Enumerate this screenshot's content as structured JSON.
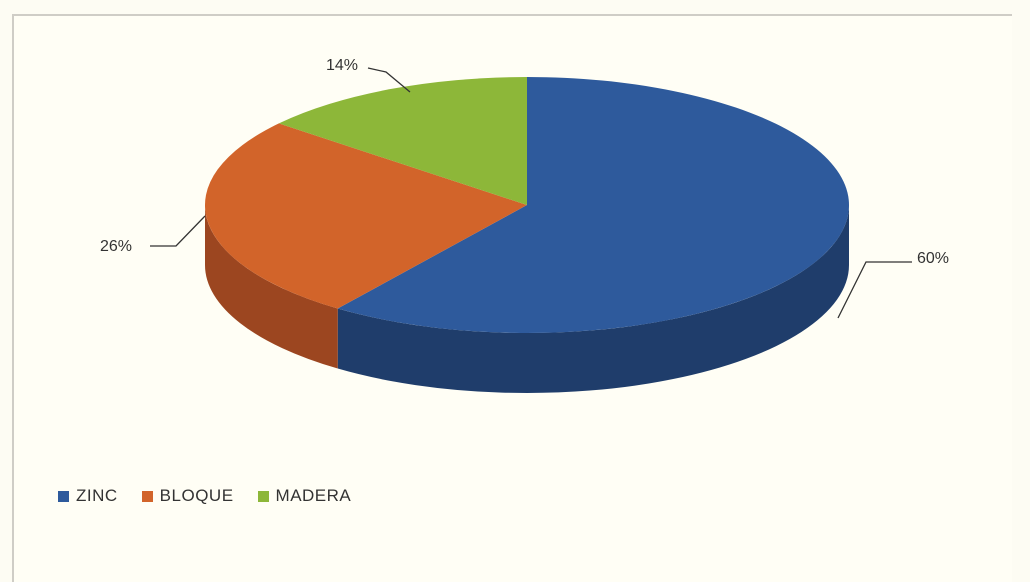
{
  "chart_data": {
    "type": "pie",
    "title": "",
    "categories": [
      "ZINC",
      "BLOQUE",
      "MADERA"
    ],
    "values": [
      60,
      26,
      14
    ],
    "labels": [
      "60%",
      "26%",
      "14%"
    ],
    "colors": [
      "#2e5a9c",
      "#d2642a",
      "#8db739"
    ],
    "side_colors": [
      "#1f3d6b",
      "#9c4620",
      "#6a8a2a"
    ],
    "legend_position": "bottom-left",
    "style": "3d"
  }
}
